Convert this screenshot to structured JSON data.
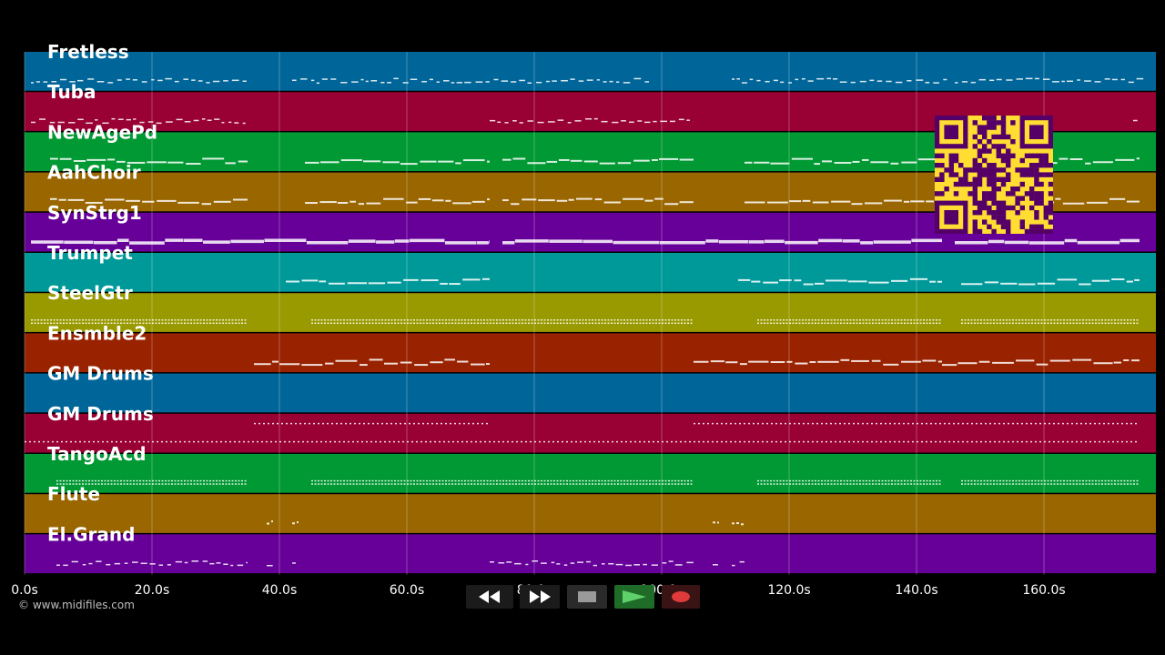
{
  "credit": "© www.midifiles.com",
  "timeline": {
    "ticks": [
      "0.0s",
      "20.0s",
      "40.0s",
      "60.0s",
      "80.0s",
      "100.0s",
      "120.0s",
      "140.0s",
      "160.0s"
    ]
  },
  "tracks": [
    {
      "name": "Fretless",
      "color": "#006699",
      "pattern": "dash",
      "segments": [
        [
          1,
          35
        ],
        [
          42,
          98
        ],
        [
          111,
          145
        ],
        [
          146,
          176
        ]
      ]
    },
    {
      "name": "Tuba",
      "color": "#990033",
      "pattern": "dash",
      "segments": [
        [
          1,
          35
        ],
        [
          73,
          105
        ],
        [
          174,
          175
        ]
      ]
    },
    {
      "name": "NewAgePd",
      "color": "#009933",
      "pattern": "line",
      "segments": [
        [
          4,
          35
        ],
        [
          44,
          73
        ],
        [
          75,
          105
        ],
        [
          113,
          145
        ],
        [
          146,
          175
        ]
      ]
    },
    {
      "name": "AahChoir",
      "color": "#996600",
      "pattern": "line",
      "segments": [
        [
          4,
          35
        ],
        [
          44,
          73
        ],
        [
          75,
          105
        ],
        [
          113,
          145
        ],
        [
          146,
          175
        ]
      ]
    },
    {
      "name": "SynStrg1",
      "color": "#660099",
      "pattern": "thick",
      "segments": [
        [
          1,
          73
        ],
        [
          75,
          144
        ],
        [
          146,
          175
        ]
      ]
    },
    {
      "name": "Trumpet",
      "color": "#009999",
      "pattern": "line",
      "segments": [
        [
          41,
          73
        ],
        [
          112,
          144
        ],
        [
          147,
          175
        ]
      ]
    },
    {
      "name": "SteelGtr",
      "color": "#999900",
      "pattern": "block",
      "segments": [
        [
          1,
          35
        ],
        [
          45,
          105
        ],
        [
          115,
          144
        ],
        [
          147,
          175
        ]
      ]
    },
    {
      "name": "Ensmble2",
      "color": "#992200",
      "pattern": "line",
      "segments": [
        [
          36,
          73
        ],
        [
          105,
          144
        ],
        [
          144,
          175
        ]
      ]
    },
    {
      "name": "GM Drums",
      "color": "#006699",
      "pattern": "none",
      "segments": []
    },
    {
      "name": "GM Drums",
      "color": "#990033",
      "pattern": "drums",
      "segments": [
        [
          36,
          73
        ],
        [
          105,
          175
        ],
        [
          0,
          175
        ]
      ]
    },
    {
      "name": "TangoAcd",
      "color": "#009933",
      "pattern": "block",
      "segments": [
        [
          5,
          35
        ],
        [
          45,
          105
        ],
        [
          115,
          144
        ],
        [
          147,
          175
        ]
      ]
    },
    {
      "name": "Flute",
      "color": "#996600",
      "pattern": "spot",
      "segments": [
        [
          38,
          39
        ],
        [
          42,
          43
        ],
        [
          108,
          109
        ],
        [
          111,
          113
        ]
      ]
    },
    {
      "name": "El.Grand",
      "color": "#660099",
      "pattern": "dash",
      "segments": [
        [
          5,
          35
        ],
        [
          38,
          39
        ],
        [
          42,
          43
        ],
        [
          73,
          105
        ],
        [
          108,
          109
        ],
        [
          111,
          113
        ]
      ]
    }
  ],
  "transport": {
    "rewind": "rewind-icon",
    "forward": "fast-forward-icon",
    "stop": "stop-icon",
    "play": "play-icon",
    "record": "record-icon"
  },
  "qr": {
    "color": "#ffdd33",
    "ink": "#550066"
  }
}
